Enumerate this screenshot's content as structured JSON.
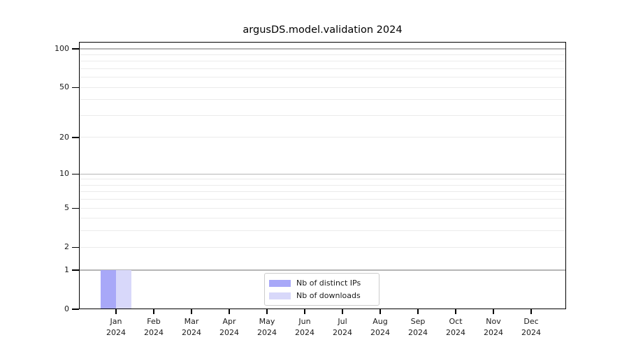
{
  "chart_data": {
    "type": "bar",
    "title": "argusDS.model.validation 2024",
    "categories": [
      {
        "month": "Jan",
        "year": "2024"
      },
      {
        "month": "Feb",
        "year": "2024"
      },
      {
        "month": "Mar",
        "year": "2024"
      },
      {
        "month": "Apr",
        "year": "2024"
      },
      {
        "month": "May",
        "year": "2024"
      },
      {
        "month": "Jun",
        "year": "2024"
      },
      {
        "month": "Jul",
        "year": "2024"
      },
      {
        "month": "Aug",
        "year": "2024"
      },
      {
        "month": "Sep",
        "year": "2024"
      },
      {
        "month": "Oct",
        "year": "2024"
      },
      {
        "month": "Nov",
        "year": "2024"
      },
      {
        "month": "Dec",
        "year": "2024"
      }
    ],
    "series": [
      {
        "name": "Nb of distinct IPs",
        "color": "#a8a8f8",
        "values": [
          1,
          0,
          0,
          0,
          0,
          0,
          0,
          0,
          0,
          0,
          0,
          0
        ]
      },
      {
        "name": "Nb of downloads",
        "color": "#d8d8fa",
        "values": [
          1,
          0,
          0,
          0,
          0,
          0,
          0,
          0,
          0,
          0,
          0,
          0
        ]
      }
    ],
    "xlabel": "",
    "ylabel": "",
    "yscale": "log1p",
    "ylim": [
      0,
      113
    ],
    "y_tick_labels": [
      0,
      1,
      2,
      5,
      10,
      20,
      50,
      100
    ],
    "y_major_gridlines": [
      1,
      10,
      100
    ],
    "y_minor_gridlines": [
      2,
      3,
      4,
      5,
      6,
      7,
      8,
      9,
      20,
      30,
      40,
      50,
      60,
      70,
      80,
      90
    ],
    "legend_position": "lower center",
    "grid": "on",
    "colors": {
      "grid_major": "#b5b5b5",
      "grid_minor": "#ebebeb",
      "spine": "#000000",
      "text": "#1a1a1a",
      "legend_border": "#cccccc",
      "background": "#ffffff"
    }
  }
}
